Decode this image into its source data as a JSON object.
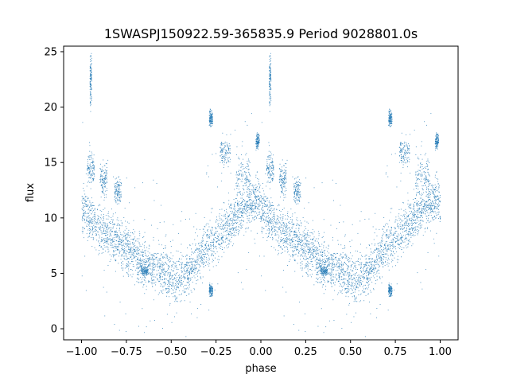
{
  "chart_data": {
    "type": "scatter",
    "title": "1SWASPJ150922.59-365835.9 Period 9028801.0s",
    "xlabel": "phase",
    "ylabel": "flux",
    "xlim": [
      -1.1,
      1.1
    ],
    "ylim": [
      -1.0,
      25.5
    ],
    "xticks": [
      -1.0,
      -0.75,
      -0.5,
      -0.25,
      0.0,
      0.25,
      0.5,
      0.75,
      1.0
    ],
    "xtick_labels": [
      "−1.00",
      "−0.75",
      "−0.50",
      "−0.25",
      "0.00",
      "0.25",
      "0.50",
      "0.75",
      "1.00"
    ],
    "yticks": [
      0,
      5,
      10,
      15,
      20,
      25
    ],
    "ytick_labels": [
      "0",
      "5",
      "10",
      "15",
      "20",
      "25"
    ],
    "grid": false,
    "point_color": "#1f77b4",
    "series": [
      {
        "profile_phase": [
          0.0,
          0.02,
          0.04,
          0.06,
          0.08,
          0.1,
          0.14,
          0.18,
          0.22,
          0.26,
          0.3,
          0.34,
          0.38,
          0.42,
          0.46,
          0.5,
          0.54,
          0.58,
          0.62,
          0.66,
          0.7,
          0.74,
          0.78,
          0.82,
          0.86,
          0.9,
          0.94,
          0.98,
          1.0
        ],
        "profile_flux": [
          11.0,
          10.5,
          10.0,
          9.8,
          9.3,
          9.0,
          8.5,
          8.0,
          7.6,
          7.3,
          6.5,
          6.0,
          5.8,
          5.5,
          5.0,
          4.5,
          4.5,
          5.0,
          5.8,
          6.5,
          7.5,
          8.2,
          8.8,
          9.5,
          10.2,
          11.0,
          11.5,
          11.8,
          11.0
        ],
        "scatter_width": 1.5,
        "clumps": [
          {
            "phase": 0.05,
            "flux": 14.5,
            "width": 0.02,
            "spread": 1.0
          },
          {
            "phase": 0.12,
            "flux": 13.5,
            "width": 0.02,
            "spread": 1.0
          },
          {
            "phase": 0.2,
            "flux": 12.5,
            "width": 0.02,
            "spread": 0.8
          },
          {
            "phase": 0.05,
            "flux": 22.5,
            "width": 0.005,
            "spread": 1.8
          },
          {
            "phase": 0.72,
            "flux": 19.0,
            "width": 0.01,
            "spread": 0.5
          },
          {
            "phase": 0.8,
            "flux": 16.0,
            "width": 0.03,
            "spread": 1.0
          },
          {
            "phase": 0.9,
            "flux": 14.0,
            "width": 0.04,
            "spread": 1.2
          },
          {
            "phase": 0.98,
            "flux": 17.0,
            "width": 0.01,
            "spread": 0.5
          },
          {
            "phase": 0.35,
            "flux": 5.2,
            "width": 0.02,
            "spread": 0.3
          },
          {
            "phase": 0.72,
            "flux": 3.5,
            "width": 0.01,
            "spread": 0.4
          }
        ]
      }
    ]
  }
}
